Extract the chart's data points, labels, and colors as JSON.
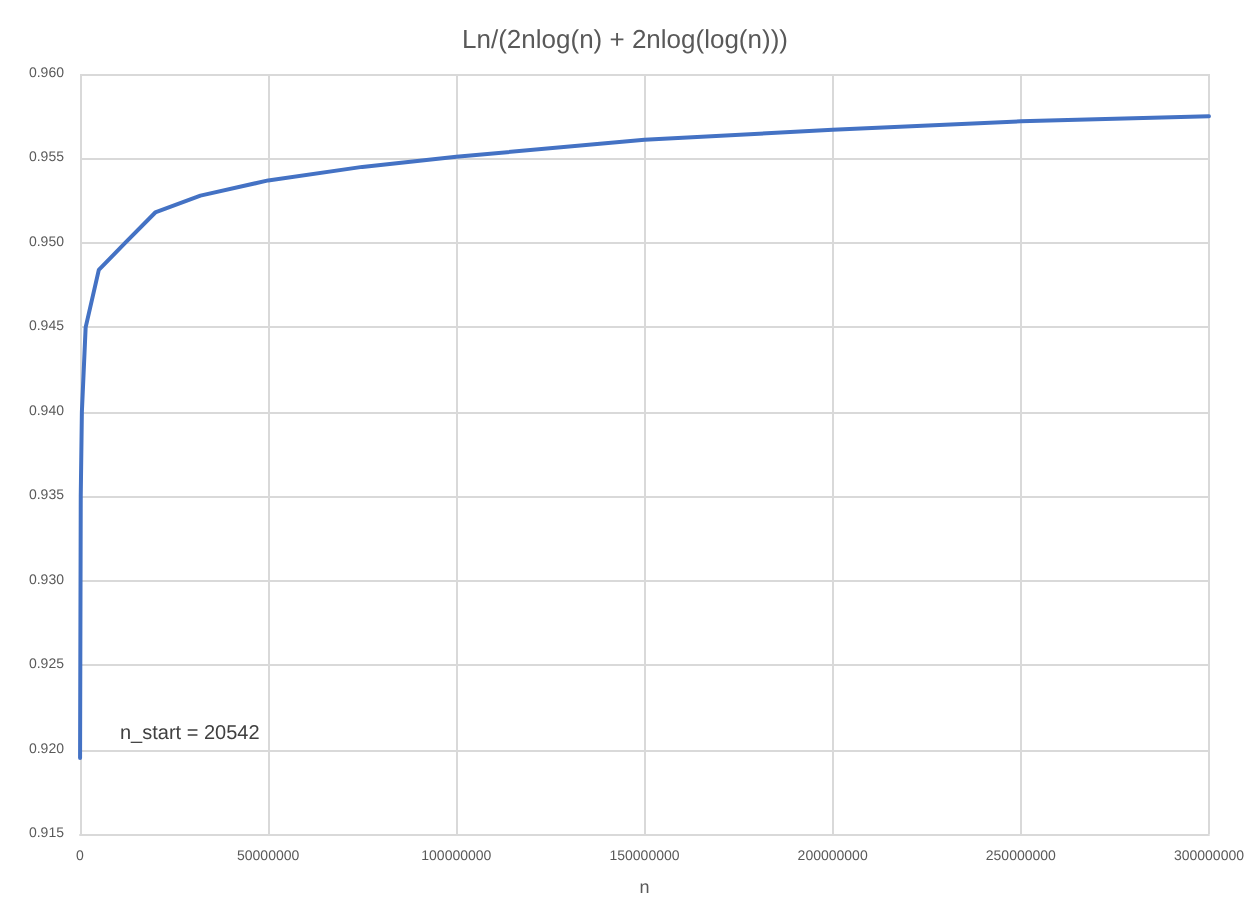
{
  "chart_data": {
    "type": "line",
    "title": "Ln/(2nlog(n) + 2nlog(log(n)))",
    "xlabel": "n",
    "x": [
      20542,
      200000,
      500000,
      1500000,
      5000000,
      12000000,
      20000000,
      32000000,
      50000000,
      75000000,
      100000000,
      150000000,
      200000000,
      250000000,
      300000000
    ],
    "series": [
      {
        "color": "#4472c4",
        "values": [
          0.9195,
          0.935,
          0.94,
          0.945,
          0.9484,
          0.95,
          0.9518,
          0.9528,
          0.9537,
          0.9545,
          0.9551,
          0.9561,
          0.9567,
          0.9572,
          0.9575
        ]
      }
    ],
    "xlim": [
      0,
      300000000
    ],
    "xticks": [
      0,
      50000000,
      100000000,
      150000000,
      200000000,
      250000000,
      300000000
    ],
    "ylim": [
      0.915,
      0.96
    ],
    "yticks": [
      0.915,
      {
        "value": 0.92,
        "label": "0.920"
      },
      0.925,
      {
        "value": 0.93,
        "label": "0.930"
      },
      0.935,
      {
        "value": 0.94,
        "label": "0.940"
      },
      0.945,
      {
        "value": 0.95,
        "label": "0.950"
      },
      0.955,
      {
        "value": 0.96,
        "label": "0.960"
      }
    ],
    "annotations": [
      "n_start = 20542"
    ],
    "grid": true,
    "marker": "none",
    "line_style": "solid"
  }
}
